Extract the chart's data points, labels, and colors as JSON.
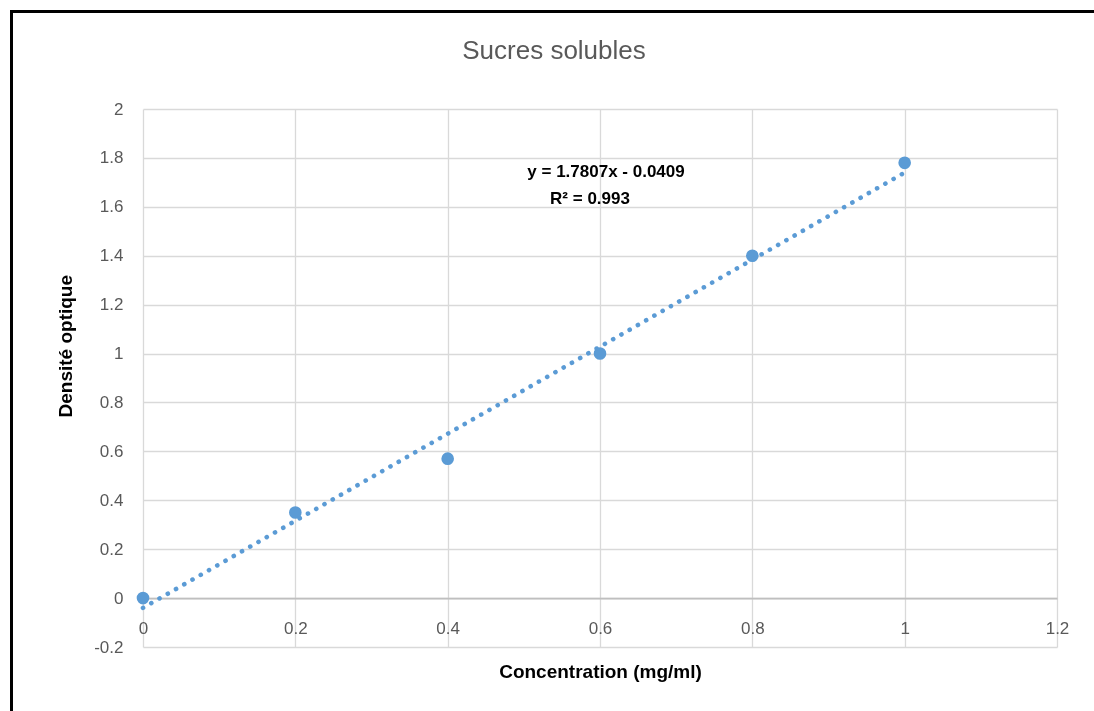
{
  "chart_data": {
    "type": "scatter",
    "title": "Sucres solubles",
    "xlabel": "Concentration (mg/ml)",
    "ylabel": "Densité optique",
    "x": [
      0,
      0.2,
      0.4,
      0.6,
      0.8,
      1
    ],
    "series": [
      {
        "color": "#5b9bd5",
        "values": [
          0,
          0.35,
          0.57,
          1.0,
          1.4,
          1.78
        ]
      },
      {
        "type": "line",
        "x": [
          0,
          1
        ],
        "values": [
          -0.04,
          1.74
        ],
        "color": "#5b9bd5",
        "line_style": "dotted",
        "marker": "none"
      }
    ],
    "xlim": [
      0,
      1.2
    ],
    "xticks": [
      0,
      0.2,
      0.4,
      0.6,
      0.8,
      1,
      1.2
    ],
    "ylim": [
      -0.2,
      2
    ],
    "yticks": [
      -0.2,
      0,
      0.2,
      0.4,
      0.6,
      0.8,
      1,
      1.2,
      1.4,
      1.6,
      1.8,
      2
    ],
    "grid": true,
    "marker": "circle",
    "annotations": [
      "y = 1.7807x - 0.0409",
      "R² = 0.993"
    ]
  }
}
